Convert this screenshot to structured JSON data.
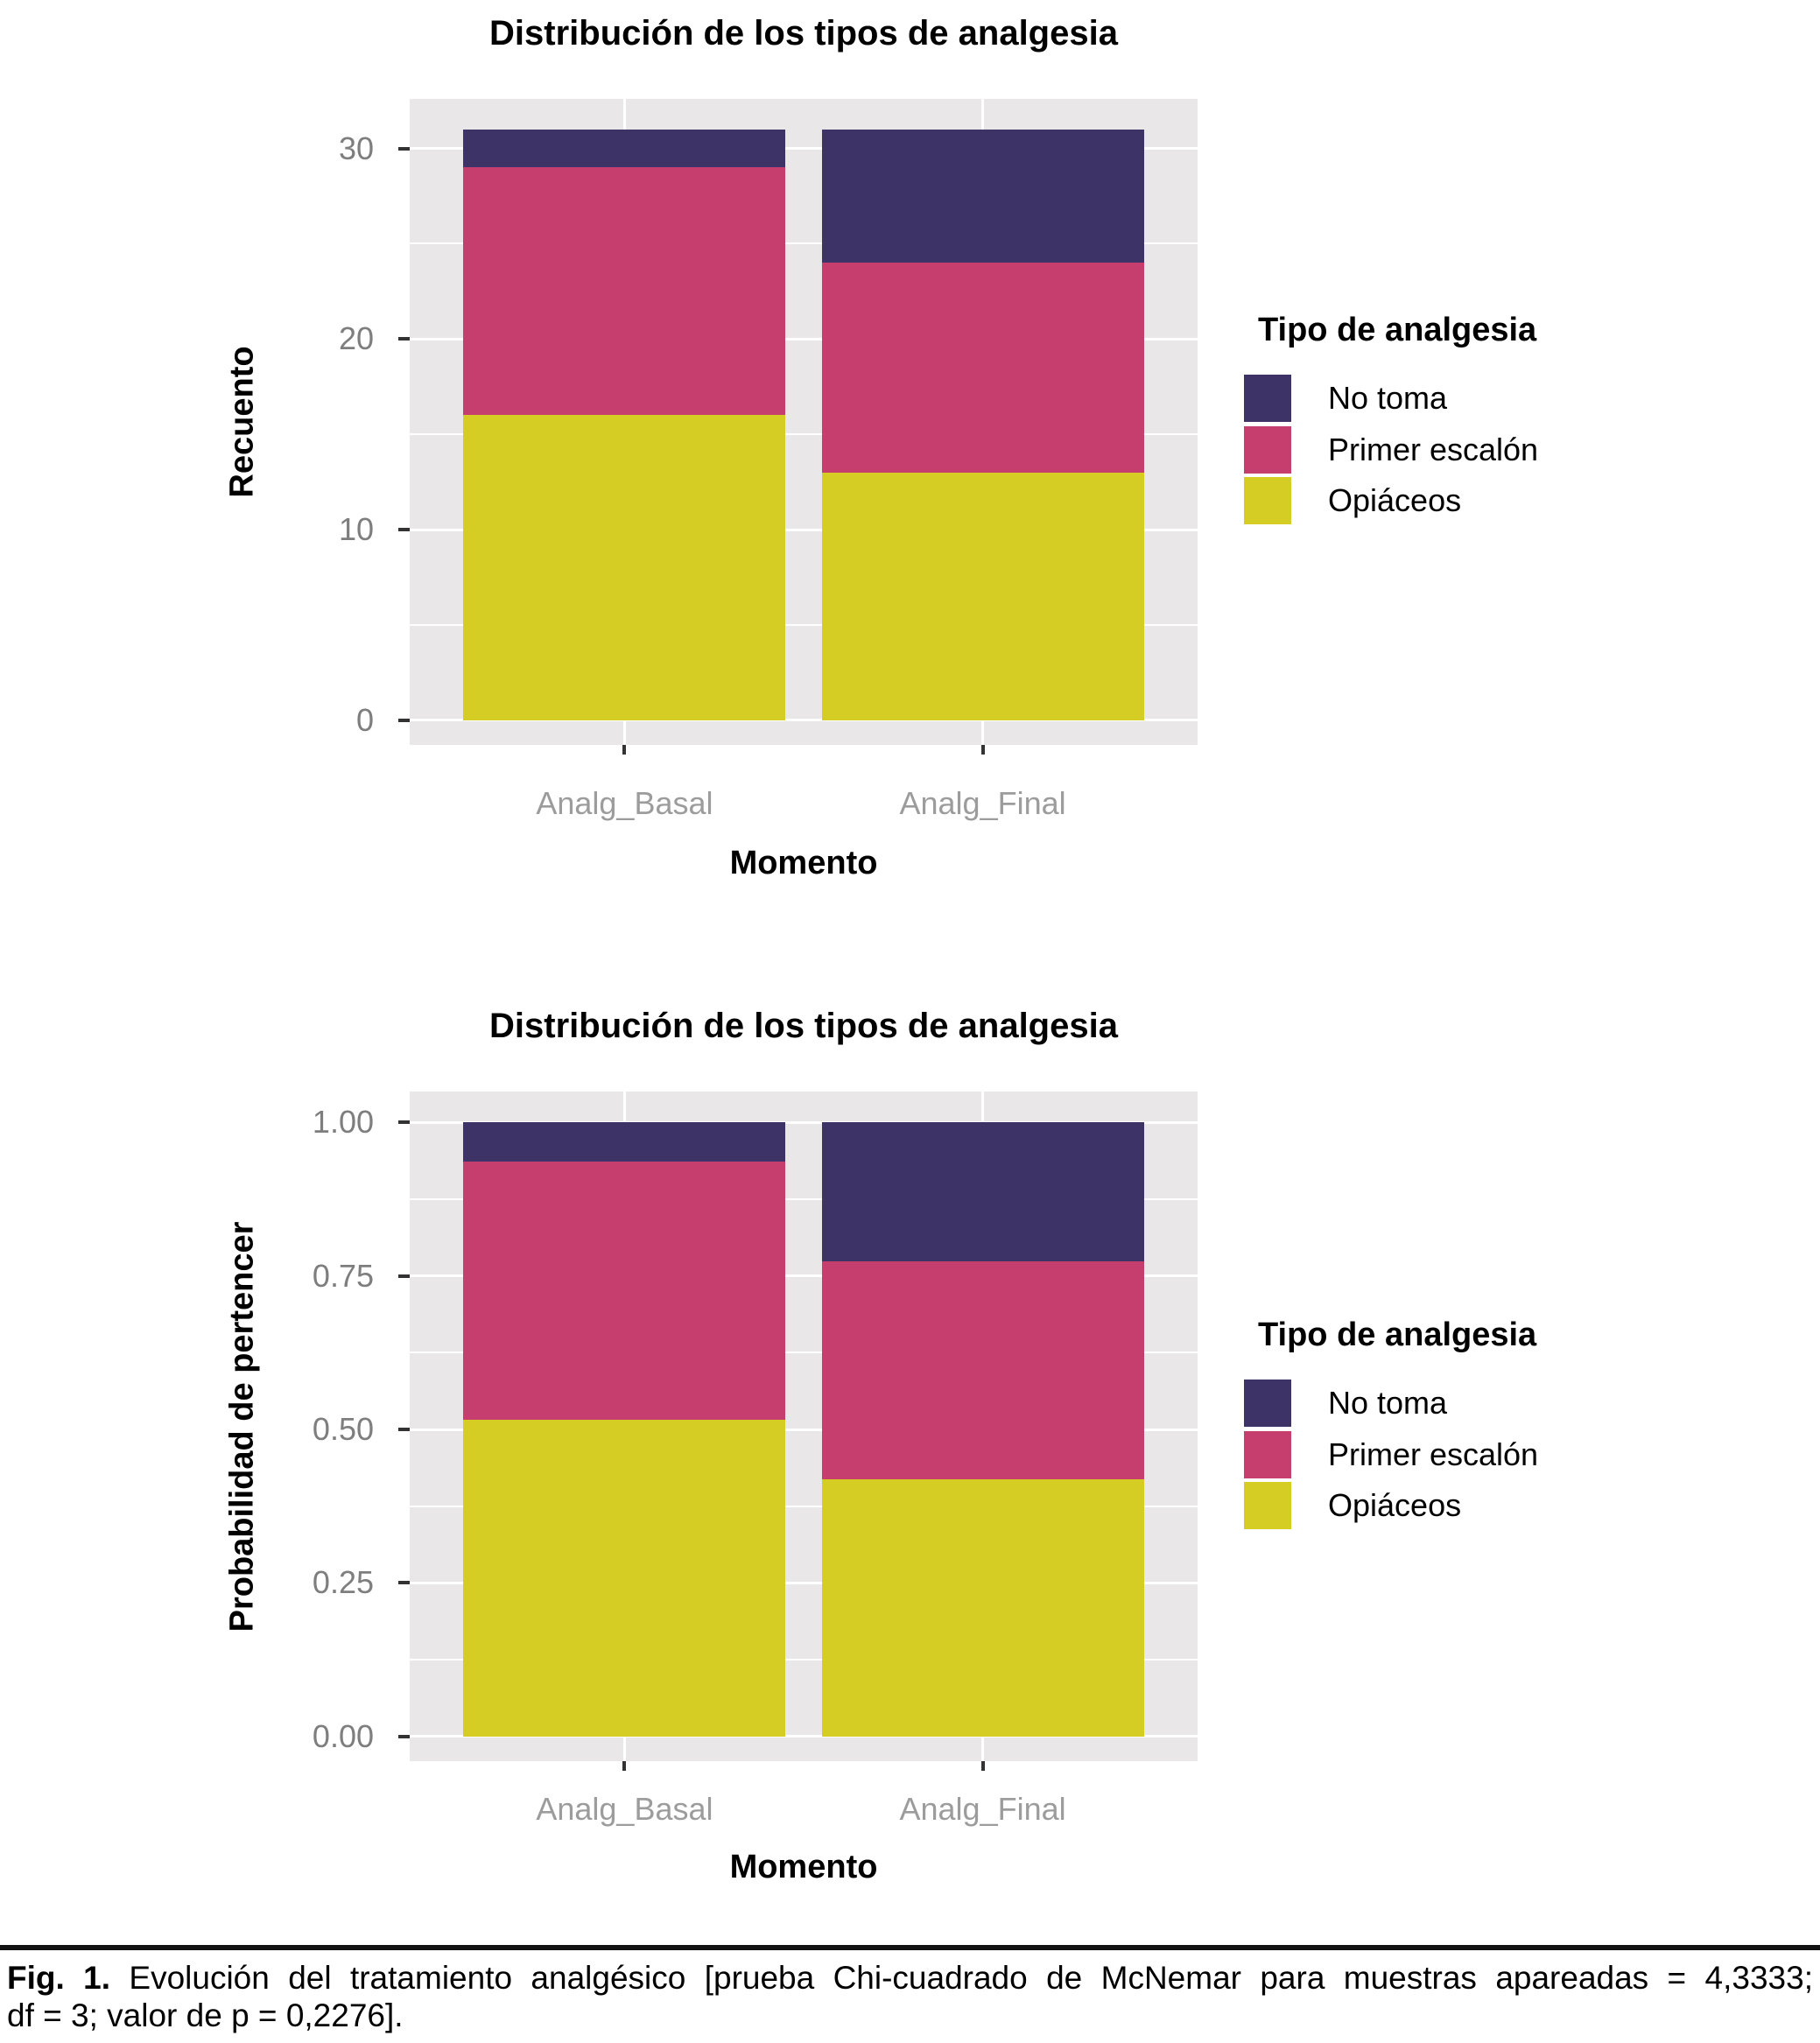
{
  "legend": {
    "title": "Tipo de analgesia",
    "items": [
      {
        "label": "No toma",
        "color": "#3E3366"
      },
      {
        "label": "Primer escalón",
        "color": "#C53E6E"
      },
      {
        "label": "Opiáceos",
        "color": "#D5CC24"
      }
    ]
  },
  "chart_data": [
    {
      "type": "bar",
      "stacked": true,
      "stack_order": "bottom-to-top",
      "title": "Distribución de los tipos de analgesia",
      "xlabel": "Momento",
      "ylabel": "Recuento",
      "categories": [
        "Analg_Basal",
        "Analg_Final"
      ],
      "series": [
        {
          "name": "Opiáceos",
          "color": "#D5CC24",
          "values": [
            16,
            13
          ]
        },
        {
          "name": "Primer escalón",
          "color": "#C53E6E",
          "values": [
            13,
            11
          ]
        },
        {
          "name": "No toma",
          "color": "#3E3366",
          "values": [
            2,
            7
          ]
        }
      ],
      "totals": [
        31,
        31
      ],
      "yticks": [
        0,
        10,
        20,
        30
      ],
      "ytick_labels": [
        "0",
        "10",
        "20",
        "30"
      ],
      "ylim": [
        -1.3,
        32.6
      ],
      "grid": "white-on-grey",
      "panel_color": "#E9E7E7",
      "legend_position": "right"
    },
    {
      "type": "bar",
      "stacked": true,
      "stack_order": "bottom-to-top",
      "title": "Distribución de los tipos de analgesia",
      "xlabel": "Momento",
      "ylabel": "Probabilidad de pertencer",
      "categories": [
        "Analg_Basal",
        "Analg_Final"
      ],
      "series": [
        {
          "name": "Opiáceos",
          "color": "#D5CC24",
          "values": [
            0.5161,
            0.4194
          ]
        },
        {
          "name": "Primer escalón",
          "color": "#C53E6E",
          "values": [
            0.4194,
            0.3548
          ]
        },
        {
          "name": "No toma",
          "color": "#3E3366",
          "values": [
            0.0645,
            0.2258
          ]
        }
      ],
      "yticks": [
        0,
        0.25,
        0.5,
        0.75,
        1.0
      ],
      "ytick_labels": [
        "0.00",
        "0.25",
        "0.50",
        "0.75",
        "1.00"
      ],
      "ylim": [
        -0.04,
        1.05
      ],
      "grid": "white-on-grey",
      "panel_color": "#E9E7E7",
      "legend_position": "right"
    }
  ],
  "caption": {
    "prefix": "Fig. 1.",
    "line1": "Evolución del tratamiento analgésico [prueba Chi-cuadrado de McNemar para muestras apareadas = 4,3333;",
    "line2": "df = 3; valor de p = 0,2276]."
  }
}
